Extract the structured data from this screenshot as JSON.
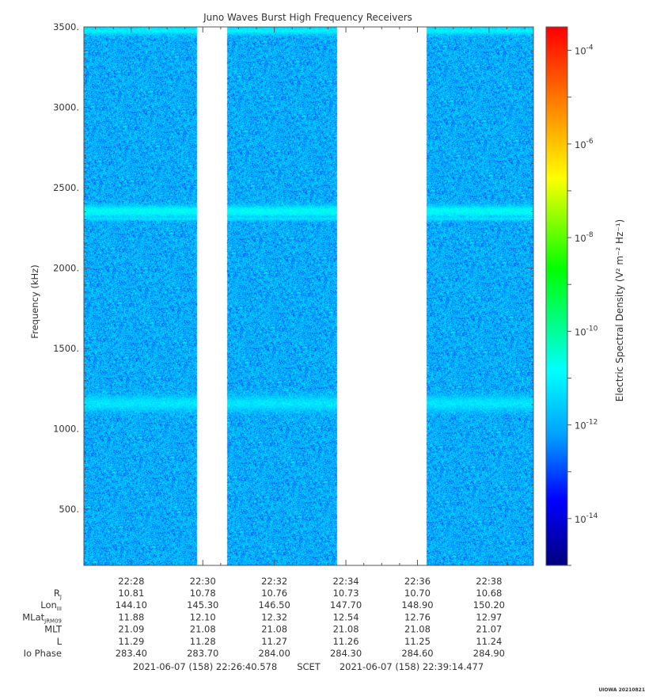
{
  "chart_data": {
    "type": "heatmap",
    "title": "Juno Waves Burst High Frequency Receivers",
    "ylabel": "Frequency (kHz)",
    "ylim": [
      150,
      3500
    ],
    "y_ticks": [
      500,
      1000,
      1500,
      2000,
      2500,
      3000,
      3500
    ],
    "y_tick_labels": [
      "500.",
      "1000.",
      "1500.",
      "2000.",
      "2500.",
      "3000.",
      "3500."
    ],
    "x_time_range": [
      "22:26:40.578",
      "22:39:14.477"
    ],
    "x_ticks": [
      "22:28",
      "22:30",
      "22:32",
      "22:34",
      "22:36",
      "22:38"
    ],
    "colorbar": {
      "label": "Electric Spectral Density (V² m⁻² Hz⁻¹)",
      "scale": "log",
      "range": [
        "1e-15",
        "3e-4"
      ],
      "ticks": [
        {
          "mantissa": "10",
          "exponent": "-4"
        },
        {
          "mantissa": "10",
          "exponent": "-6"
        },
        {
          "mantissa": "10",
          "exponent": "-8"
        },
        {
          "mantissa": "10",
          "exponent": "-10"
        },
        {
          "mantissa": "10",
          "exponent": "-12"
        },
        {
          "mantissa": "10",
          "exponent": "-14"
        }
      ],
      "tick_values_log10": [
        -4,
        -6,
        -8,
        -10,
        -12,
        -14
      ],
      "log10_min": -15,
      "log10_max": -3.5,
      "colors": [
        "#000080",
        "#0000ff",
        "#00a0ff",
        "#00ffff",
        "#00ff00",
        "#ffff00",
        "#ff8000",
        "#ff0000"
      ]
    },
    "data_segments": [
      {
        "start": "22:26:40.578",
        "end": "22:29:50"
      },
      {
        "start": "22:30:40",
        "end": "22:33:45"
      },
      {
        "start": "22:36:15",
        "end": "22:39:14.477"
      }
    ],
    "gaps": [
      {
        "start": "22:29:50",
        "end": "22:30:40"
      },
      {
        "start": "22:33:45",
        "end": "22:36:15"
      }
    ],
    "background_level_log10": -12,
    "emission_bands": [
      {
        "freq_khz": 3480,
        "width_khz": 25,
        "peak_log10": -11.0
      },
      {
        "freq_khz": 2355,
        "width_khz": 35,
        "peak_log10": -10.8
      },
      {
        "freq_khz": 2310,
        "width_khz": 12,
        "peak_log10": -11.2
      },
      {
        "freq_khz": 1160,
        "width_khz": 45,
        "peak_log10": -11.2
      }
    ]
  },
  "ephemeris": {
    "rows": [
      {
        "label": "R",
        "sub": "J",
        "values": [
          "10.81",
          "10.78",
          "10.76",
          "10.73",
          "10.70",
          "10.68"
        ]
      },
      {
        "label": "Lon",
        "sub": "III",
        "values": [
          "144.10",
          "145.30",
          "146.50",
          "147.70",
          "148.90",
          "150.20"
        ]
      },
      {
        "label": "MLat",
        "sub": "JRM09",
        "values": [
          "11.88",
          "12.10",
          "12.32",
          "12.54",
          "12.76",
          "12.97"
        ]
      },
      {
        "label": "MLT",
        "sub": "",
        "values": [
          "21.09",
          "21.08",
          "21.08",
          "21.08",
          "21.08",
          "21.07"
        ]
      },
      {
        "label": "L",
        "sub": "",
        "values": [
          "11.29",
          "11.28",
          "11.27",
          "11.26",
          "11.25",
          "11.24"
        ]
      },
      {
        "label": "Io Phase",
        "sub": "",
        "values": [
          "283.40",
          "283.70",
          "284.00",
          "284.30",
          "284.60",
          "284.90"
        ]
      }
    ]
  },
  "footer": {
    "start": "2021-06-07 (158) 22:26:40.578",
    "scet": "SCET",
    "end": "2021-06-07 (158) 22:39:14.477",
    "credit": "UIOWA 20210821"
  }
}
